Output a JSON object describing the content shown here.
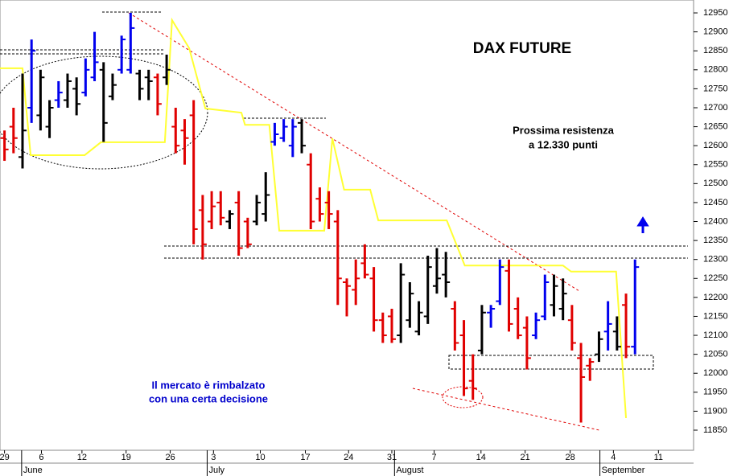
{
  "chart_data": {
    "type": "ohlc",
    "title": "DAX FUTURE",
    "annotations": [
      "Prossima resistenza",
      "a 12.330 punti",
      "Il mercato è rimbalzato",
      "con una certa decisione"
    ],
    "x": [
      0,
      1,
      2,
      3,
      4,
      5,
      6,
      7,
      8,
      9,
      10,
      11,
      12,
      13,
      14,
      15,
      16,
      17,
      18,
      19,
      20,
      21,
      22,
      23,
      24,
      25,
      26,
      27,
      28,
      29,
      30,
      31,
      32,
      33,
      34,
      35,
      36,
      37,
      38,
      39,
      40,
      41,
      42,
      43,
      44,
      45,
      46,
      47,
      48,
      49,
      50,
      51,
      52,
      53,
      54,
      55,
      56,
      57,
      58,
      59,
      60,
      61,
      62,
      63,
      64,
      65,
      66,
      67,
      68,
      69,
      70
    ],
    "open": [
      12620,
      12650,
      12570,
      12700,
      12680,
      12650,
      12720,
      12720,
      12750,
      12740,
      12780,
      12800,
      12730,
      12800,
      12800,
      12790,
      12780,
      12780,
      12780,
      12650,
      12640,
      12680,
      12430,
      12400,
      12450,
      12400,
      12450,
      12400,
      12400,
      12420,
      12610,
      12620,
      12600,
      12660,
      12550,
      12460,
      12450,
      12400,
      12240,
      12220,
      12290,
      12250,
      12140,
      12150,
      12100,
      12140,
      12110,
      12150,
      12230,
      12260,
      12170,
      12100,
      11980,
      12060,
      12160,
      12190,
      12270,
      12170,
      12120,
      12100,
      12150,
      12180,
      12170,
      12140,
      12040,
      12020,
      12050,
      12110,
      12110,
      12180,
      12070
    ],
    "high": [
      12640,
      12700,
      12790,
      12880,
      12800,
      12720,
      12770,
      12790,
      12780,
      12830,
      12900,
      12820,
      12790,
      12890,
      12950,
      12800,
      12800,
      12790,
      12840,
      12700,
      12670,
      12720,
      12470,
      12480,
      12480,
      12430,
      12480,
      12410,
      12470,
      12530,
      12660,
      12670,
      12670,
      12670,
      12580,
      12490,
      12480,
      12430,
      12250,
      12300,
      12340,
      12280,
      12160,
      12170,
      12290,
      12240,
      12190,
      12310,
      12330,
      12320,
      12190,
      12140,
      12050,
      12180,
      12180,
      12300,
      12300,
      12200,
      12150,
      12160,
      12260,
      12260,
      12250,
      12180,
      12080,
      12040,
      12110,
      12190,
      12150,
      12210,
      12300
    ],
    "low": [
      12560,
      12580,
      12540,
      12660,
      12640,
      12620,
      12700,
      12700,
      12680,
      12730,
      12770,
      12610,
      12720,
      12790,
      12790,
      12720,
      12720,
      12680,
      12760,
      12580,
      12550,
      12340,
      12300,
      12380,
      12390,
      12380,
      12310,
      12330,
      12390,
      12400,
      12600,
      12610,
      12570,
      12580,
      12380,
      12400,
      12380,
      12180,
      12150,
      12180,
      12250,
      12110,
      12080,
      12080,
      12080,
      12120,
      12100,
      12130,
      12210,
      12200,
      12060,
      11940,
      11930,
      12050,
      12120,
      12180,
      12110,
      12090,
      12010,
      12090,
      12140,
      12150,
      12140,
      12060,
      11870,
      11980,
      12030,
      12060,
      12060,
      12040,
      12050
    ],
    "close": [
      12590,
      12620,
      12640,
      12850,
      12780,
      12700,
      12740,
      12770,
      12710,
      12800,
      12820,
      12660,
      12760,
      12880,
      12910,
      12750,
      12770,
      12710,
      12800,
      12600,
      12620,
      12380,
      12340,
      12440,
      12410,
      12420,
      12330,
      12340,
      12450,
      12470,
      12630,
      12650,
      12650,
      12600,
      12400,
      12420,
      12420,
      12250,
      12230,
      12250,
      12260,
      12140,
      12100,
      12090,
      12260,
      12210,
      12160,
      12280,
      12250,
      12240,
      12080,
      11960,
      11960,
      12160,
      12170,
      12280,
      12130,
      12100,
      12040,
      12140,
      12240,
      12230,
      12210,
      12080,
      11990,
      12030,
      12090,
      12130,
      12070,
      12070,
      12280
    ],
    "colors": [
      "#e00000",
      "#e00000",
      "#000000",
      "#0000ee",
      "#000000",
      "#000000",
      "#0000ee",
      "#000000",
      "#000000",
      "#0000ee",
      "#0000ee",
      "#000000",
      "#000000",
      "#0000ee",
      "#0000ee",
      "#000000",
      "#000000",
      "#e00000",
      "#000000",
      "#e00000",
      "#e00000",
      "#e00000",
      "#e00000",
      "#e00000",
      "#e00000",
      "#000000",
      "#e00000",
      "#e00000",
      "#000000",
      "#000000",
      "#0000ee",
      "#0000ee",
      "#0000ee",
      "#000000",
      "#e00000",
      "#e00000",
      "#e00000",
      "#e00000",
      "#e00000",
      "#e00000",
      "#e00000",
      "#e00000",
      "#e00000",
      "#e00000",
      "#000000",
      "#000000",
      "#000000",
      "#000000",
      "#000000",
      "#000000",
      "#e00000",
      "#e00000",
      "#e00000",
      "#000000",
      "#0000ee",
      "#0000ee",
      "#e00000",
      "#e00000",
      "#e00000",
      "#0000ee",
      "#0000ee",
      "#000000",
      "#000000",
      "#e00000",
      "#e00000",
      "#e00000",
      "#000000",
      "#0000ee",
      "#000000",
      "#e00000",
      "#0000ee"
    ],
    "line": {
      "color": "#ffff33",
      "x": [
        -0.5,
        2.0,
        2.9,
        8.9,
        10.7,
        17.8,
        18.6,
        20.5,
        22.3,
        26.3,
        26.7,
        29.4,
        30.5,
        35.5,
        36.4,
        37.7,
        40.6,
        41.5,
        49.1,
        51.1,
        62.0,
        62.9,
        67.9,
        69.0
      ],
      "values": [
        12804,
        12804,
        12575,
        12575,
        12609,
        12609,
        12931,
        12857,
        12698,
        12687,
        12655,
        12655,
        12376,
        12376,
        12619,
        12484,
        12484,
        12403,
        12403,
        12284,
        12284,
        12268,
        12268,
        11882
      ]
    },
    "xlim": [
      -0.5,
      76.5
    ],
    "ylim": [
      11797,
      12984
    ],
    "xticks": [
      {
        "value": 0,
        "label": "29"
      },
      {
        "value": 4.1,
        "label": "6"
      },
      {
        "value": 8.6,
        "label": "12"
      },
      {
        "value": 13.5,
        "label": "19"
      },
      {
        "value": 18.4,
        "label": "26"
      },
      {
        "value": 23.2,
        "label": "3"
      },
      {
        "value": 28.4,
        "label": "10"
      },
      {
        "value": 33.4,
        "label": "17"
      },
      {
        "value": 38.2,
        "label": "24"
      },
      {
        "value": 43.0,
        "label": "31"
      },
      {
        "value": 47.7,
        "label": "7"
      },
      {
        "value": 52.9,
        "label": "14"
      },
      {
        "value": 57.8,
        "label": "21"
      },
      {
        "value": 62.8,
        "label": "28"
      },
      {
        "value": 67.6,
        "label": "4"
      },
      {
        "value": 72.6,
        "label": "11"
      }
    ],
    "months": [
      {
        "value": 1.9,
        "label": "June"
      },
      {
        "value": 22.5,
        "label": "July"
      },
      {
        "value": 43.3,
        "label": "August"
      },
      {
        "value": 66.1,
        "label": "September"
      }
    ],
    "yticks": [
      11850,
      11900,
      11950,
      12000,
      12050,
      12100,
      12150,
      12200,
      12250,
      12300,
      12350,
      12400,
      12450,
      12500,
      12550,
      12600,
      12650,
      12700,
      12750,
      12800,
      12850,
      12900,
      12950
    ]
  }
}
